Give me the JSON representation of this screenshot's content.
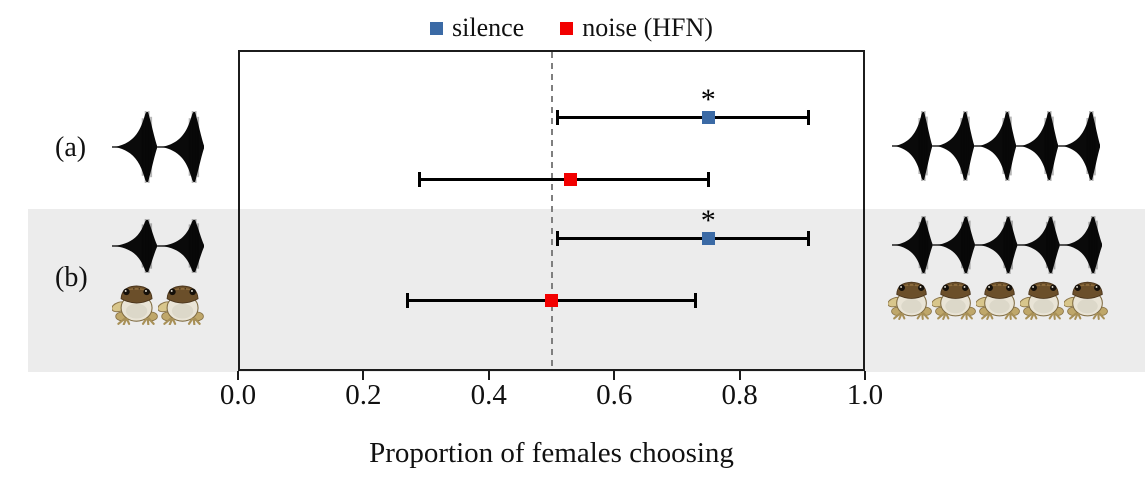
{
  "legend": {
    "items": [
      {
        "label": "silence",
        "color": "#3b6aa5"
      },
      {
        "label": "noise (HFN)",
        "color": "#f20000"
      }
    ]
  },
  "axis": {
    "label": "Proportion of females choosing",
    "tick_labels": [
      "0.0",
      "0.2",
      "0.4",
      "0.6",
      "0.8",
      "1.0"
    ]
  },
  "rows": [
    {
      "label": "(a)",
      "left_call_pulses": 2,
      "right_call_pulses": 5,
      "left_frogs": 0,
      "right_frogs": 0
    },
    {
      "label": "(b)",
      "left_call_pulses": 2,
      "right_call_pulses": 5,
      "left_frogs": 2,
      "right_frogs": 5
    }
  ],
  "colors": {
    "highlight_band": "#ececec",
    "reference_line": "#7f7f7f",
    "error_bar": "#000000"
  },
  "chart_data": {
    "type": "scatter",
    "title": "",
    "xlabel": "Proportion of females choosing",
    "ylabel": "",
    "xlim": [
      0,
      1
    ],
    "x_ticks": [
      0.0,
      0.2,
      0.4,
      0.6,
      0.8,
      1.0
    ],
    "reference_line_x": 0.5,
    "grid": false,
    "legend_position": "top",
    "significance_marker": "*",
    "categories": [
      "a",
      "b"
    ],
    "series": [
      {
        "name": "silence",
        "color": "#3b6aa5",
        "points": [
          {
            "row": "a",
            "mean": 0.75,
            "ci_low": 0.51,
            "ci_high": 0.91,
            "significant": true
          },
          {
            "row": "b",
            "mean": 0.75,
            "ci_low": 0.51,
            "ci_high": 0.91,
            "significant": true
          }
        ]
      },
      {
        "name": "noise (HFN)",
        "color": "#f20000",
        "points": [
          {
            "row": "a",
            "mean": 0.53,
            "ci_low": 0.29,
            "ci_high": 0.75,
            "significant": false
          },
          {
            "row": "b",
            "mean": 0.5,
            "ci_low": 0.27,
            "ci_high": 0.73,
            "significant": false
          }
        ]
      }
    ]
  }
}
